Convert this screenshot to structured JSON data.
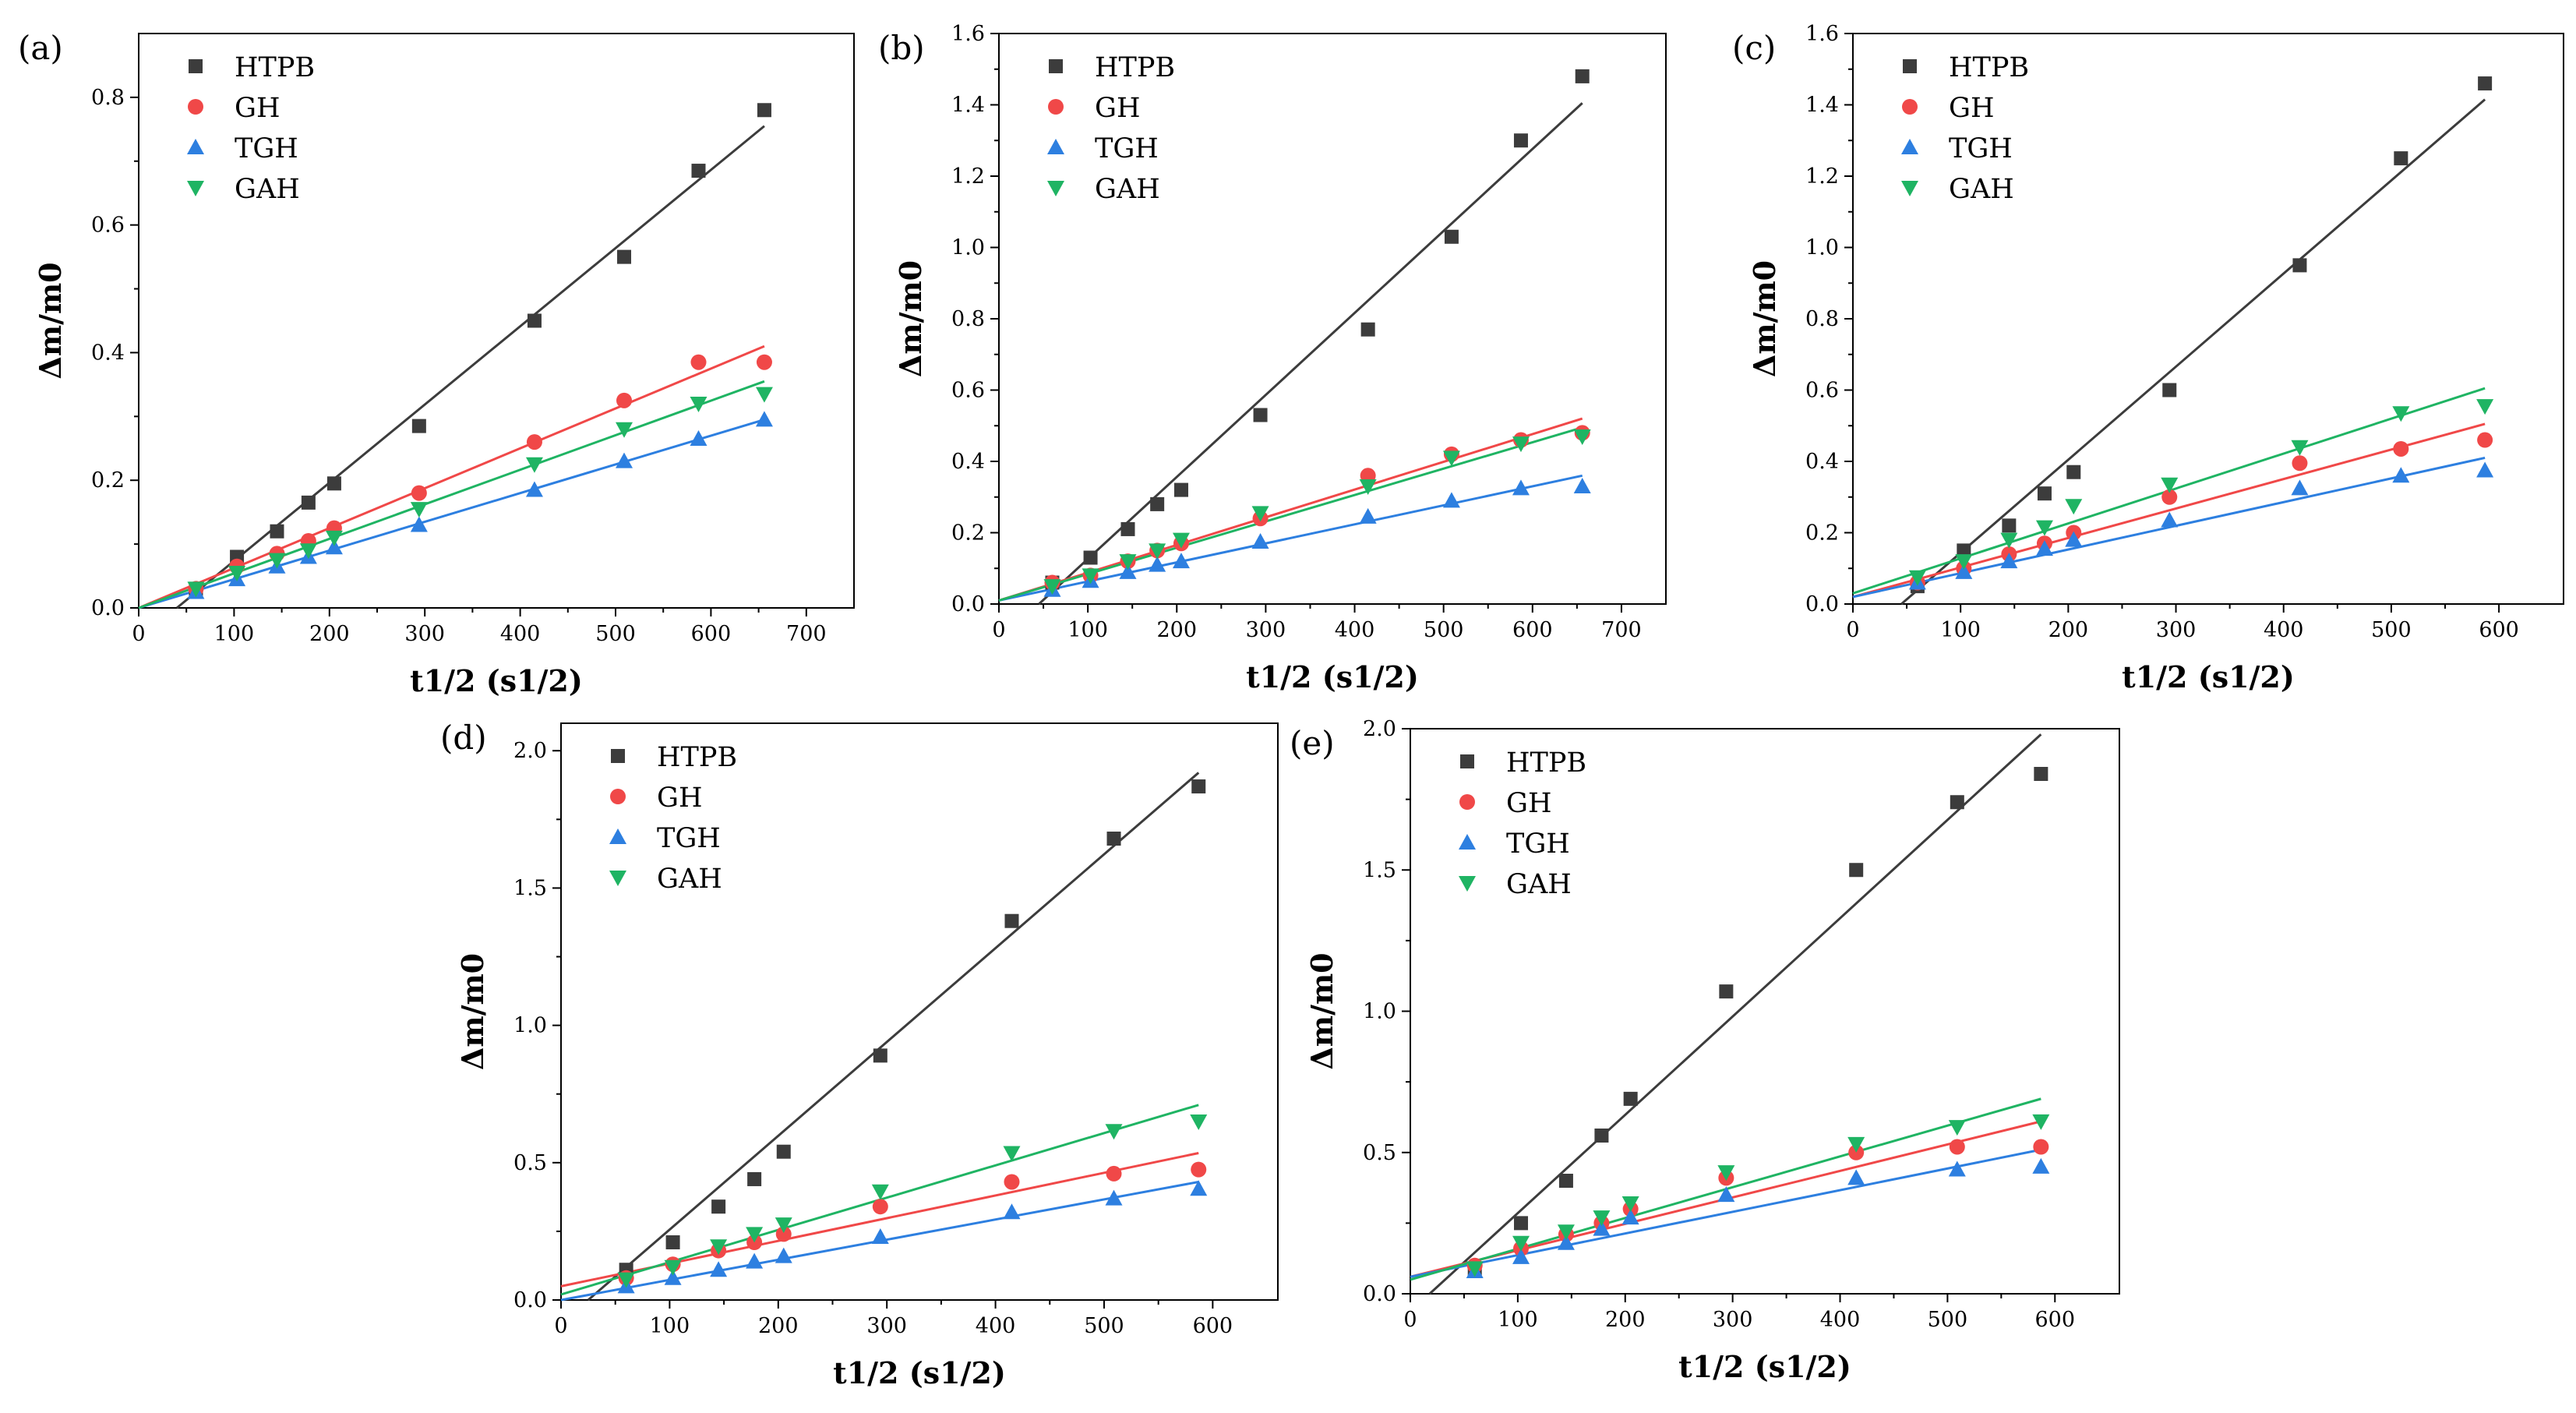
{
  "figure": {
    "colors": {
      "HTPB": "#3c3c3c",
      "GH": "#f04848",
      "TGH": "#2d7fe0",
      "GAH": "#1fb463",
      "axis": "#000000"
    }
  },
  "chart_data": [
    {
      "type": "scatter",
      "panel_label": "(a)",
      "xlabel": "t1/2 (s1/2)",
      "ylabel": "Δm/m0",
      "xlim": [
        0,
        750
      ],
      "ylim": [
        0,
        0.9
      ],
      "xticks": [
        "0",
        "100",
        "200",
        "300",
        "400",
        "500",
        "600",
        "700"
      ],
      "yticks": [
        "0.0",
        "0.2",
        "0.4",
        "0.6",
        "0.8"
      ],
      "x": [
        60,
        103,
        145,
        178,
        205,
        294,
        415,
        509,
        587,
        656
      ],
      "series": [
        {
          "name": "HTPB",
          "marker": "square",
          "values": [
            0.03,
            0.08,
            0.12,
            0.165,
            0.195,
            0.285,
            0.45,
            0.55,
            0.685,
            0.78
          ],
          "fit": [
            [
              40,
              0
            ],
            [
              656,
              0.755
            ]
          ]
        },
        {
          "name": "GH",
          "marker": "circle",
          "values": [
            0.03,
            0.065,
            0.085,
            0.105,
            0.125,
            0.18,
            0.26,
            0.325,
            0.385,
            0.385
          ],
          "fit": [
            [
              0,
              0
            ],
            [
              656,
              0.41
            ]
          ]
        },
        {
          "name": "TGH",
          "marker": "triangle-up",
          "values": [
            0.025,
            0.045,
            0.065,
            0.08,
            0.095,
            0.13,
            0.185,
            0.23,
            0.265,
            0.295
          ],
          "fit": [
            [
              0,
              0
            ],
            [
              656,
              0.295
            ]
          ]
        },
        {
          "name": "GAH",
          "marker": "triangle-down",
          "values": [
            0.03,
            0.055,
            0.075,
            0.09,
            0.11,
            0.155,
            0.225,
            0.28,
            0.32,
            0.335
          ],
          "fit": [
            [
              0,
              0
            ],
            [
              656,
              0.355
            ]
          ]
        }
      ]
    },
    {
      "type": "scatter",
      "panel_label": "(b)",
      "xlabel": "t1/2 (s1/2)",
      "ylabel": "Δm/m0",
      "xlim": [
        0,
        750
      ],
      "ylim": [
        0,
        1.6
      ],
      "xticks": [
        "0",
        "100",
        "200",
        "300",
        "400",
        "500",
        "600",
        "700"
      ],
      "yticks": [
        "0.0",
        "0.2",
        "0.4",
        "0.6",
        "0.8",
        "1.0",
        "1.2",
        "1.4",
        "1.6"
      ],
      "x": [
        60,
        103,
        145,
        178,
        205,
        294,
        415,
        509,
        587,
        656
      ],
      "series": [
        {
          "name": "HTPB",
          "marker": "square",
          "values": [
            0.06,
            0.13,
            0.21,
            0.28,
            0.32,
            0.53,
            0.77,
            1.03,
            1.3,
            1.48
          ],
          "fit": [
            [
              45,
              0
            ],
            [
              656,
              1.405
            ]
          ]
        },
        {
          "name": "GH",
          "marker": "circle",
          "values": [
            0.06,
            0.08,
            0.12,
            0.15,
            0.17,
            0.24,
            0.36,
            0.42,
            0.46,
            0.48
          ],
          "fit": [
            [
              0,
              0.01
            ],
            [
              656,
              0.52
            ]
          ]
        },
        {
          "name": "TGH",
          "marker": "triangle-up",
          "values": [
            0.04,
            0.065,
            0.09,
            0.11,
            0.12,
            0.175,
            0.245,
            0.29,
            0.325,
            0.33
          ],
          "fit": [
            [
              0,
              0.01
            ],
            [
              656,
              0.36
            ]
          ]
        },
        {
          "name": "GAH",
          "marker": "triangle-down",
          "values": [
            0.05,
            0.08,
            0.12,
            0.15,
            0.18,
            0.255,
            0.33,
            0.41,
            0.45,
            0.47
          ],
          "fit": [
            [
              0,
              0.01
            ],
            [
              656,
              0.495
            ]
          ]
        }
      ]
    },
    {
      "type": "scatter",
      "panel_label": "(c)",
      "xlabel": "t1/2 (s1/2)",
      "ylabel": "Δm/m0",
      "xlim": [
        0,
        660
      ],
      "ylim": [
        0,
        1.6
      ],
      "xticks": [
        "0",
        "100",
        "200",
        "300",
        "400",
        "500",
        "600"
      ],
      "yticks": [
        "0.0",
        "0.2",
        "0.4",
        "0.6",
        "0.8",
        "1.0",
        "1.2",
        "1.4",
        "1.6"
      ],
      "x": [
        60,
        103,
        145,
        178,
        205,
        294,
        415,
        509,
        587
      ],
      "series": [
        {
          "name": "HTPB",
          "marker": "square",
          "values": [
            0.05,
            0.15,
            0.22,
            0.31,
            0.37,
            0.6,
            0.95,
            1.25,
            1.46
          ],
          "fit": [
            [
              45,
              0
            ],
            [
              587,
              1.415
            ]
          ]
        },
        {
          "name": "GH",
          "marker": "circle",
          "values": [
            0.06,
            0.1,
            0.14,
            0.17,
            0.2,
            0.3,
            0.395,
            0.435,
            0.46
          ],
          "fit": [
            [
              0,
              0.02
            ],
            [
              587,
              0.505
            ]
          ]
        },
        {
          "name": "TGH",
          "marker": "triangle-up",
          "values": [
            0.06,
            0.09,
            0.12,
            0.155,
            0.18,
            0.235,
            0.325,
            0.36,
            0.375
          ],
          "fit": [
            [
              0,
              0.02
            ],
            [
              587,
              0.41
            ]
          ]
        },
        {
          "name": "GAH",
          "marker": "triangle-down",
          "values": [
            0.075,
            0.12,
            0.18,
            0.215,
            0.275,
            0.335,
            0.44,
            0.535,
            0.555
          ],
          "fit": [
            [
              0,
              0.03
            ],
            [
              587,
              0.605
            ]
          ]
        }
      ]
    },
    {
      "type": "scatter",
      "panel_label": "(d)",
      "xlabel": "t1/2 (s1/2)",
      "ylabel": "Δm/m0",
      "xlim": [
        0,
        660
      ],
      "ylim": [
        0,
        2.1
      ],
      "xticks": [
        "0",
        "100",
        "200",
        "300",
        "400",
        "500",
        "600"
      ],
      "yticks": [
        "0.0",
        "0.5",
        "1.0",
        "1.5",
        "2.0"
      ],
      "x": [
        60,
        103,
        145,
        178,
        205,
        294,
        415,
        509,
        587
      ],
      "series": [
        {
          "name": "HTPB",
          "marker": "square",
          "values": [
            0.11,
            0.21,
            0.34,
            0.44,
            0.54,
            0.89,
            1.38,
            1.68,
            1.87
          ],
          "fit": [
            [
              25,
              0
            ],
            [
              587,
              1.92
            ]
          ]
        },
        {
          "name": "GH",
          "marker": "circle",
          "values": [
            0.08,
            0.13,
            0.18,
            0.21,
            0.24,
            0.34,
            0.43,
            0.46,
            0.475
          ],
          "fit": [
            [
              0,
              0.05
            ],
            [
              587,
              0.535
            ]
          ]
        },
        {
          "name": "TGH",
          "marker": "triangle-up",
          "values": [
            0.05,
            0.08,
            0.11,
            0.14,
            0.16,
            0.23,
            0.32,
            0.37,
            0.405
          ],
          "fit": [
            [
              0,
              0.0
            ],
            [
              587,
              0.43
            ]
          ]
        },
        {
          "name": "GAH",
          "marker": "triangle-down",
          "values": [
            0.075,
            0.12,
            0.195,
            0.24,
            0.275,
            0.395,
            0.535,
            0.615,
            0.65
          ],
          "fit": [
            [
              0,
              0.02
            ],
            [
              587,
              0.71
            ]
          ]
        }
      ]
    },
    {
      "type": "scatter",
      "panel_label": "(e)",
      "xlabel": "t1/2 (s1/2)",
      "ylabel": "Δm/m0",
      "xlim": [
        0,
        660
      ],
      "ylim": [
        0,
        2.0
      ],
      "xticks": [
        "0",
        "100",
        "200",
        "300",
        "400",
        "500",
        "600"
      ],
      "yticks": [
        "0.0",
        "0.5",
        "1.0",
        "1.5",
        "2.0"
      ],
      "x": [
        60,
        103,
        145,
        178,
        205,
        294,
        415,
        509,
        587
      ],
      "series": [
        {
          "name": "HTPB",
          "marker": "square",
          "values": [
            0.09,
            0.25,
            0.4,
            0.56,
            0.69,
            1.07,
            1.5,
            1.74,
            1.84
          ],
          "fit": [
            [
              18,
              0
            ],
            [
              587,
              1.98
            ]
          ]
        },
        {
          "name": "GH",
          "marker": "circle",
          "values": [
            0.1,
            0.16,
            0.21,
            0.25,
            0.3,
            0.41,
            0.5,
            0.52,
            0.52
          ],
          "fit": [
            [
              0,
              0.06
            ],
            [
              587,
              0.61
            ]
          ]
        },
        {
          "name": "TGH",
          "marker": "triangle-up",
          "values": [
            0.08,
            0.13,
            0.18,
            0.23,
            0.27,
            0.35,
            0.41,
            0.44,
            0.45
          ],
          "fit": [
            [
              0,
              0.06
            ],
            [
              587,
              0.51
            ]
          ]
        },
        {
          "name": "GAH",
          "marker": "triangle-down",
          "values": [
            0.09,
            0.18,
            0.22,
            0.27,
            0.32,
            0.43,
            0.53,
            0.59,
            0.61
          ],
          "fit": [
            [
              0,
              0.05
            ],
            [
              587,
              0.69
            ]
          ]
        }
      ]
    }
  ]
}
